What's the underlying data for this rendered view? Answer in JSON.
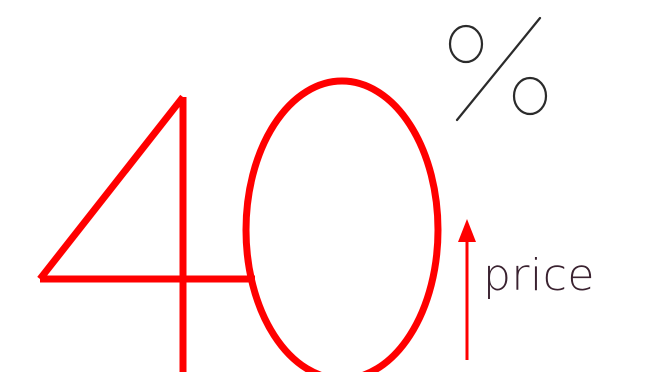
{
  "graphic": {
    "number_text": "40",
    "percent_text": "%",
    "label_text": "price",
    "arrow_direction": "up",
    "arrow_icon": "up-arrow-icon"
  },
  "colors": {
    "accent": "#ff0000",
    "percent": "#2b2b2b",
    "label": "#3a2230",
    "background": "#ffffff"
  }
}
